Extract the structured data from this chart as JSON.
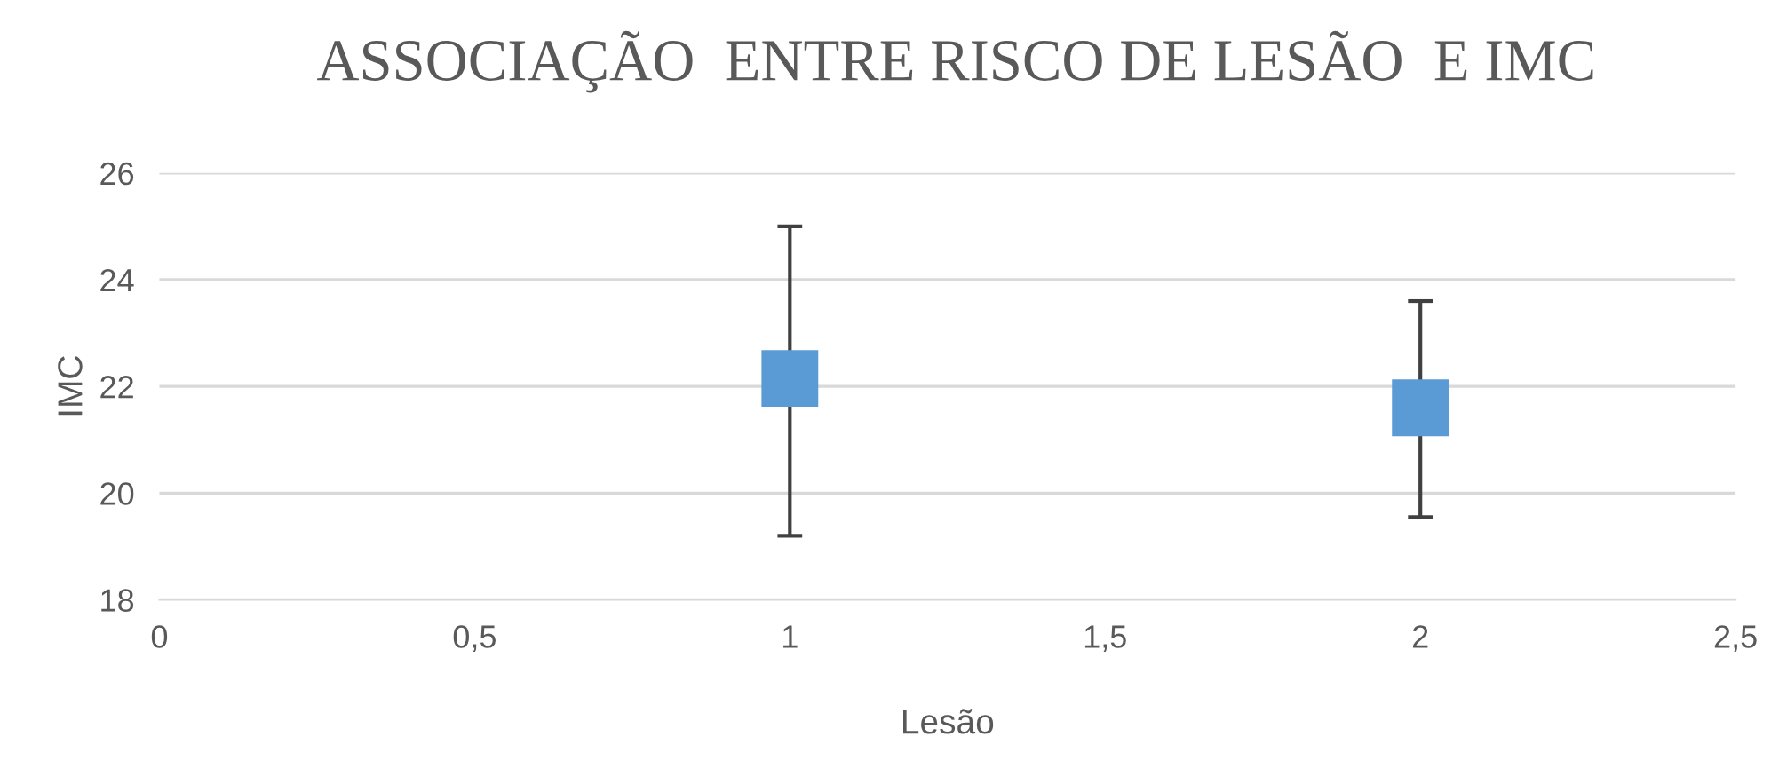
{
  "chart_data": {
    "type": "scatter",
    "title": "ASSOCIAÇÃO  ENTRE RISCO DE LESÃO  E IMC",
    "xlabel": "Lesão",
    "ylabel": "IMC",
    "x": [
      1,
      2
    ],
    "series": [
      {
        "color": "#5b9bd5",
        "values": [
          22.15,
          21.6
        ],
        "errors": [
          [
            19.2,
            25.0
          ],
          [
            19.55,
            23.6
          ]
        ]
      }
    ],
    "xlim": [
      0,
      2.5
    ],
    "xticks": [
      0,
      {
        "value": 0.5,
        "label": "0,5"
      },
      1,
      {
        "value": 1.5,
        "label": "1,5"
      },
      2,
      {
        "value": 2.5,
        "label": "2,5"
      }
    ],
    "ylim": [
      18,
      26
    ],
    "yticks": [
      18,
      20,
      22,
      24,
      26
    ],
    "grid": "y",
    "marker": "square",
    "legend": false
  }
}
